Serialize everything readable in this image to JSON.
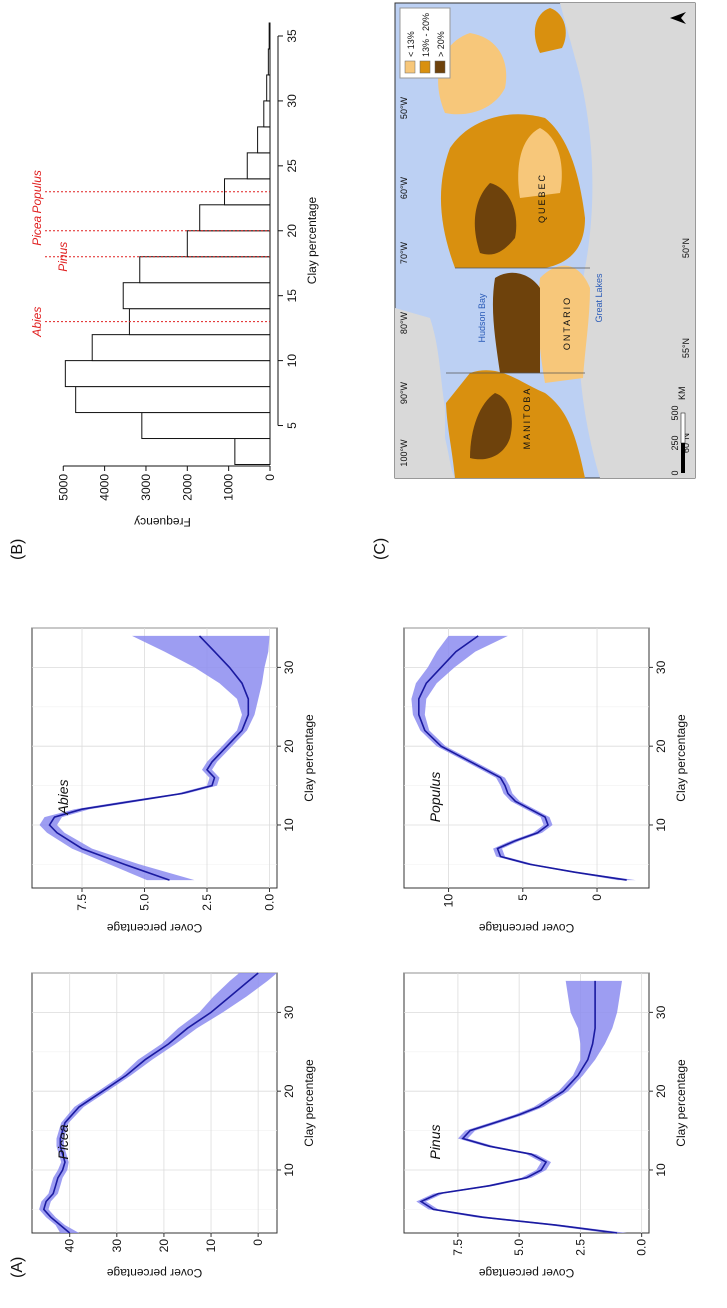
{
  "panel_labels": [
    "(A)",
    "(B)",
    "(C)"
  ],
  "chart_data": [
    {
      "type": "line",
      "panel": "A",
      "annotation": "Picea",
      "xlabel": "Clay percentage",
      "ylabel": "Cover percentage",
      "xlim": [
        2,
        35
      ],
      "ylim": [
        -4,
        48
      ],
      "xticks": [
        10,
        20,
        30
      ],
      "yticks": [
        0,
        10,
        20,
        30,
        40
      ],
      "grid": true,
      "color": "#1a1aa0",
      "band_color": "#8c8cf0",
      "x": [
        2,
        3,
        4,
        5,
        6,
        7,
        8,
        9,
        10,
        11,
        12,
        13,
        14,
        16,
        18,
        20,
        22,
        24,
        26,
        28,
        30,
        32,
        34,
        35
      ],
      "y": [
        40,
        42,
        44,
        45.5,
        45,
        43.5,
        43,
        42.5,
        41.5,
        41,
        41.5,
        42,
        42,
        41,
        38,
        33,
        28,
        24,
        19,
        15,
        10,
        6,
        2,
        0
      ],
      "lower": [
        38,
        41,
        43,
        44.5,
        44,
        42.5,
        42,
        41.5,
        40.5,
        40.2,
        40.7,
        41.2,
        41.2,
        40.2,
        37,
        32,
        27,
        22.5,
        17.5,
        13,
        7.5,
        2.5,
        -2,
        -4
      ],
      "upper": [
        42,
        43,
        45,
        46.5,
        46,
        44.5,
        44,
        43.5,
        42.5,
        41.8,
        42.3,
        42.8,
        42.8,
        41.8,
        39,
        34,
        29,
        25.5,
        20.5,
        17,
        12.5,
        9.5,
        6,
        4
      ]
    },
    {
      "type": "line",
      "panel": "A",
      "annotation": "Abies",
      "xlabel": "Clay percentage",
      "ylabel": "Cover percentage",
      "xlim": [
        2,
        35
      ],
      "ylim": [
        -0.3,
        9.5
      ],
      "xticks": [
        10,
        20,
        30
      ],
      "yticks": [
        0.0,
        2.5,
        5.0,
        7.5
      ],
      "ytick_labels": [
        "0.0",
        "2.5",
        "5.0",
        "7.5"
      ],
      "grid": true,
      "color": "#1a1aa0",
      "band_color": "#8c8cf0",
      "x": [
        3,
        5,
        7,
        9,
        10,
        11,
        12,
        13,
        14,
        15,
        16,
        17,
        18,
        20,
        22,
        24,
        26,
        28,
        30,
        32,
        34
      ],
      "y": [
        4.0,
        5.8,
        7.5,
        8.5,
        8.8,
        8.6,
        7.5,
        5.5,
        3.5,
        2.3,
        2.2,
        2.5,
        2.3,
        1.7,
        1.1,
        0.85,
        0.85,
        1.1,
        1.6,
        2.2,
        2.8
      ],
      "lower": [
        3.0,
        5.2,
        7.1,
        8.2,
        8.5,
        8.3,
        7.2,
        5.2,
        3.3,
        2.1,
        2.0,
        2.3,
        2.1,
        1.5,
        0.9,
        0.6,
        0.45,
        0.3,
        0.2,
        0.05,
        0.0
      ],
      "upper": [
        4.9,
        6.4,
        7.9,
        8.9,
        9.2,
        9.0,
        7.8,
        5.8,
        3.7,
        2.5,
        2.4,
        2.7,
        2.5,
        1.9,
        1.3,
        1.1,
        1.3,
        2.0,
        3.0,
        4.2,
        5.5
      ]
    },
    {
      "type": "histogram",
      "panel": "B",
      "xlabel": "Clay percentage",
      "ylabel": "Frequency",
      "xlim": [
        2.5,
        36
      ],
      "ylim": [
        0,
        5200
      ],
      "xticks": [
        5,
        10,
        15,
        20,
        25,
        30,
        35
      ],
      "yticks": [
        0,
        1000,
        2000,
        3000,
        4000,
        5000
      ],
      "bins": [
        [
          2,
          4
        ],
        [
          4,
          6
        ],
        [
          6,
          8
        ],
        [
          8,
          10
        ],
        [
          10,
          12
        ],
        [
          12,
          14
        ],
        [
          14,
          16
        ],
        [
          16,
          18
        ],
        [
          18,
          20
        ],
        [
          20,
          22
        ],
        [
          22,
          24
        ],
        [
          24,
          26
        ],
        [
          26,
          28
        ],
        [
          28,
          30
        ],
        [
          30,
          32
        ],
        [
          32,
          34
        ],
        [
          34,
          36
        ]
      ],
      "values": [
        850,
        3100,
        4700,
        4950,
        4300,
        3400,
        3550,
        3150,
        2000,
        1700,
        1100,
        550,
        300,
        150,
        80,
        40,
        20
      ],
      "markers": [
        {
          "label": "Abies",
          "x": 13
        },
        {
          "label": "Pinus",
          "x": 18
        },
        {
          "label": "Picea",
          "x": 20
        },
        {
          "label": "Populus",
          "x": 23
        }
      ],
      "marker_color": "#e02020"
    },
    {
      "type": "line",
      "panel": "C",
      "annotation": "Pinus",
      "xlabel": "Clay percentage",
      "ylabel": "Cover percentage",
      "xlim": [
        2,
        35
      ],
      "ylim": [
        -0.3,
        9.7
      ],
      "xticks": [
        10,
        20,
        30
      ],
      "yticks": [
        0.0,
        2.5,
        5.0,
        7.5
      ],
      "ytick_labels": [
        "0.0",
        "2.5",
        "5.0",
        "7.5"
      ],
      "grid": true,
      "color": "#1a1aa0",
      "band_color": "#8c8cf0",
      "x": [
        2,
        3,
        4,
        5,
        6,
        7,
        8,
        9,
        10,
        11,
        12,
        13,
        14,
        15,
        16,
        17,
        18,
        20,
        22,
        24,
        26,
        28,
        30,
        32,
        34
      ],
      "y": [
        1.0,
        3.5,
        6.5,
        8.5,
        9.0,
        8.3,
        6.2,
        4.7,
        4.1,
        3.9,
        4.5,
        6.2,
        7.3,
        7.0,
        6.0,
        5.0,
        4.2,
        3.2,
        2.6,
        2.2,
        2.0,
        1.9,
        1.9,
        1.9,
        1.9
      ],
      "lower": [
        0.6,
        3.2,
        6.2,
        8.3,
        8.8,
        8.1,
        6.0,
        4.5,
        3.9,
        3.7,
        4.3,
        6.0,
        7.1,
        6.8,
        5.8,
        4.8,
        4.0,
        3.0,
        2.4,
        1.9,
        1.5,
        1.2,
        1.0,
        0.9,
        0.8
      ],
      "upper": [
        1.4,
        3.8,
        6.8,
        8.7,
        9.2,
        8.5,
        6.4,
        4.9,
        4.3,
        4.1,
        4.7,
        6.4,
        7.5,
        7.2,
        6.2,
        5.2,
        4.4,
        3.4,
        2.8,
        2.5,
        2.5,
        2.6,
        2.9,
        3.0,
        3.1
      ]
    },
    {
      "type": "line",
      "panel": "C",
      "annotation": "Populus",
      "xlabel": "Clay percentage",
      "ylabel": "Cover percentage",
      "xlim": [
        2,
        35
      ],
      "ylim": [
        -3.5,
        13
      ],
      "xticks": [
        10,
        20,
        30
      ],
      "yticks": [
        0,
        5,
        10
      ],
      "grid": true,
      "color": "#1a1aa0",
      "band_color": "#8c8cf0",
      "x": [
        3,
        4,
        5,
        6,
        7,
        8,
        9,
        10,
        11,
        12,
        13,
        14,
        15,
        16,
        17,
        18,
        20,
        22,
        24,
        26,
        28,
        30,
        32,
        34
      ],
      "y": [
        -2.0,
        1.5,
        4.5,
        6.5,
        6.7,
        5.5,
        4.0,
        3.3,
        3.5,
        4.5,
        5.5,
        6.0,
        6.2,
        6.5,
        7.5,
        8.5,
        10.5,
        11.6,
        12.0,
        12.0,
        11.5,
        10.5,
        9.5,
        8.0
      ],
      "lower": [
        -2.6,
        1.2,
        4.2,
        6.2,
        6.4,
        5.2,
        3.7,
        3.0,
        3.2,
        4.2,
        5.2,
        5.7,
        5.9,
        6.2,
        7.2,
        8.2,
        10.2,
        11.3,
        11.6,
        11.5,
        10.8,
        9.6,
        8.2,
        6.0
      ],
      "upper": [
        -1.4,
        1.8,
        4.8,
        6.8,
        7.0,
        5.8,
        4.3,
        3.6,
        3.8,
        4.8,
        5.8,
        6.3,
        6.5,
        6.8,
        7.8,
        8.8,
        10.8,
        11.9,
        12.4,
        12.5,
        12.2,
        11.4,
        10.8,
        10.0
      ]
    }
  ],
  "map": {
    "water_labels": [
      "Hudson Bay",
      "Great Lakes"
    ],
    "region_labels": [
      "MANITOBA",
      "ONTARIO",
      "QUEBEC"
    ],
    "longitude_labels": [
      "100°W",
      "90°W",
      "80°W",
      "70°W",
      "60°W",
      "50°W"
    ],
    "latitude_labels": [
      "60°N",
      "55°N",
      "50°N"
    ],
    "legend": [
      {
        "label": "< 13%",
        "color": "#f7c77a"
      },
      {
        "label": "13% - 20%",
        "color": "#d9900f"
      },
      {
        "label": "> 20%",
        "color": "#6e420c"
      }
    ],
    "scalebar": [
      "0",
      "250",
      "500",
      "KM"
    ],
    "colors": {
      "ocean": "#bcd0f3",
      "land": "#d9d9d9"
    }
  }
}
